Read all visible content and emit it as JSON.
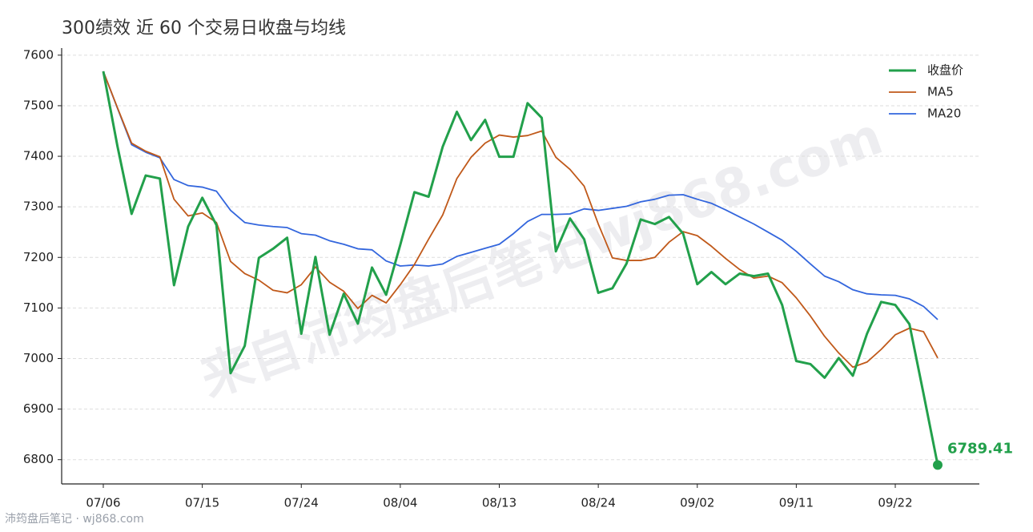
{
  "chart_data": {
    "type": "line",
    "title": "300绩效 近 60 个交易日收盘与均线",
    "categories": [
      "07/06",
      null,
      null,
      null,
      null,
      null,
      null,
      "07/15",
      null,
      null,
      null,
      null,
      null,
      null,
      "07/24",
      null,
      null,
      null,
      null,
      null,
      null,
      "08/04",
      null,
      null,
      null,
      null,
      null,
      null,
      "08/13",
      null,
      null,
      null,
      null,
      null,
      null,
      "08/24",
      null,
      null,
      null,
      null,
      null,
      null,
      "09/02",
      null,
      null,
      null,
      null,
      null,
      null,
      "09/11",
      null,
      null,
      null,
      null,
      null,
      null,
      "09/22",
      null,
      null,
      null
    ],
    "series": [
      {
        "name": "收盘价",
        "color": "#22a04b",
        "width": 3,
        "values": [
          7568,
          7420,
          7286,
          7362,
          7356,
          7145,
          7261,
          7318,
          7264,
          6971,
          7025,
          7199,
          7217,
          7239,
          7049,
          7201,
          7047,
          7128,
          7069,
          7180,
          7126,
          7225,
          7329,
          7320,
          7419,
          7488,
          7432,
          7472,
          7399,
          7399,
          7505,
          7476,
          7212,
          7277,
          7236,
          7130,
          7139,
          7188,
          7275,
          7266,
          7280,
          7247,
          7147,
          7171,
          7147,
          7168,
          7163,
          7168,
          7106,
          6995,
          6989,
          6962,
          7001,
          6966,
          7049,
          7112,
          7106,
          7068,
          6930,
          6789.41
        ]
      },
      {
        "name": "MA5",
        "color": "#c0591a",
        "width": 1.8,
        "values": [
          7568,
          7496,
          7426,
          7410,
          7399,
          7315,
          7282,
          7288,
          7269,
          7192,
          7168,
          7155,
          7135,
          7130,
          7146,
          7181,
          7151,
          7133,
          7099,
          7125,
          7110,
          7146,
          7186,
          7236,
          7284,
          7356,
          7398,
          7426,
          7442,
          7438,
          7441,
          7450,
          7398,
          7374,
          7341,
          7266,
          7199,
          7194,
          7194,
          7200,
          7230,
          7251,
          7243,
          7222,
          7198,
          7176,
          7159,
          7163,
          7150,
          7120,
          7084,
          7044,
          7011,
          6983,
          6993,
          7018,
          7047,
          7060,
          7053,
          7001
        ]
      },
      {
        "name": "MA20",
        "color": "#3366dd",
        "width": 1.8,
        "values": [
          7568,
          7495,
          7423,
          7408,
          7397,
          7354,
          7342,
          7339,
          7331,
          7293,
          7269,
          7264,
          7261,
          7259,
          7247,
          7244,
          7233,
          7226,
          7217,
          7215,
          7193,
          7183,
          7185,
          7183,
          7187,
          7202,
          7210,
          7218,
          7226,
          7247,
          7271,
          7285,
          7285,
          7286,
          7296,
          7293,
          7297,
          7301,
          7310,
          7315,
          7323,
          7324,
          7315,
          7307,
          7294,
          7280,
          7266,
          7250,
          7234,
          7212,
          7187,
          7163,
          7152,
          7136,
          7128,
          7126,
          7125,
          7118,
          7103,
          7077
        ]
      }
    ],
    "ylim": [
      6752,
      7614
    ],
    "yticks": [
      6800,
      6900,
      7000,
      7100,
      7200,
      7300,
      7400,
      7500,
      7600
    ],
    "grid": true,
    "legend": "upper right",
    "highlight_last": 0,
    "watermark": "来自沛筠盘后笔记wj868.com"
  },
  "footer": "沛筠盘后笔记 · wj868.com"
}
